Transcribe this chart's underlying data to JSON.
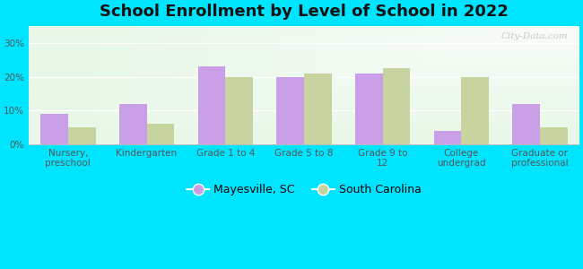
{
  "title": "School Enrollment by Level of School in 2022",
  "categories": [
    "Nursery,\npreschool",
    "Kindergarten",
    "Grade 1 to 4",
    "Grade 5 to 8",
    "Grade 9 to\n12",
    "College\nundergrad",
    "Graduate or\nprofessional"
  ],
  "mayesville": [
    9.0,
    12.0,
    23.0,
    20.0,
    21.0,
    4.0,
    12.0
  ],
  "south_carolina": [
    5.0,
    6.0,
    20.0,
    21.0,
    22.5,
    20.0,
    5.0
  ],
  "mayesville_color": "#c9a0e8",
  "sc_color": "#c8d4a0",
  "background_outer": "#00e5ff",
  "ylim": [
    0,
    35
  ],
  "yticks": [
    0,
    10,
    20,
    30
  ],
  "ytick_labels": [
    "0%",
    "10%",
    "20%",
    "30%"
  ],
  "bar_width": 0.35,
  "legend_mayesville": "Mayesville, SC",
  "legend_sc": "South Carolina",
  "watermark": "City-Data.com",
  "title_fontsize": 13,
  "tick_fontsize": 7.5
}
